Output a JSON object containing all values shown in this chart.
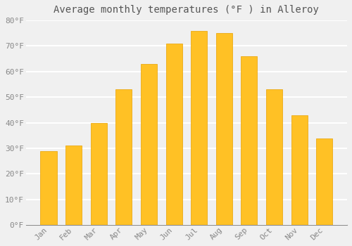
{
  "title": "Average monthly temperatures (°F ) in Alleroy",
  "months": [
    "Jan",
    "Feb",
    "Mar",
    "Apr",
    "May",
    "Jun",
    "Jul",
    "Aug",
    "Sep",
    "Oct",
    "Nov",
    "Dec"
  ],
  "values": [
    29,
    31,
    40,
    53,
    63,
    71,
    76,
    75,
    66,
    53,
    43,
    34
  ],
  "bar_color_top": "#FFC125",
  "bar_color_bottom": "#FFB000",
  "bar_edge_color": "#E8A000",
  "background_color": "#F0F0F0",
  "plot_bg_color": "#F0F0F0",
  "grid_color": "#FFFFFF",
  "text_color": "#888888",
  "title_color": "#555555",
  "ylim": [
    0,
    80
  ],
  "yticks": [
    0,
    10,
    20,
    30,
    40,
    50,
    60,
    70,
    80
  ],
  "title_fontsize": 10,
  "tick_fontsize": 8,
  "bar_width": 0.65
}
